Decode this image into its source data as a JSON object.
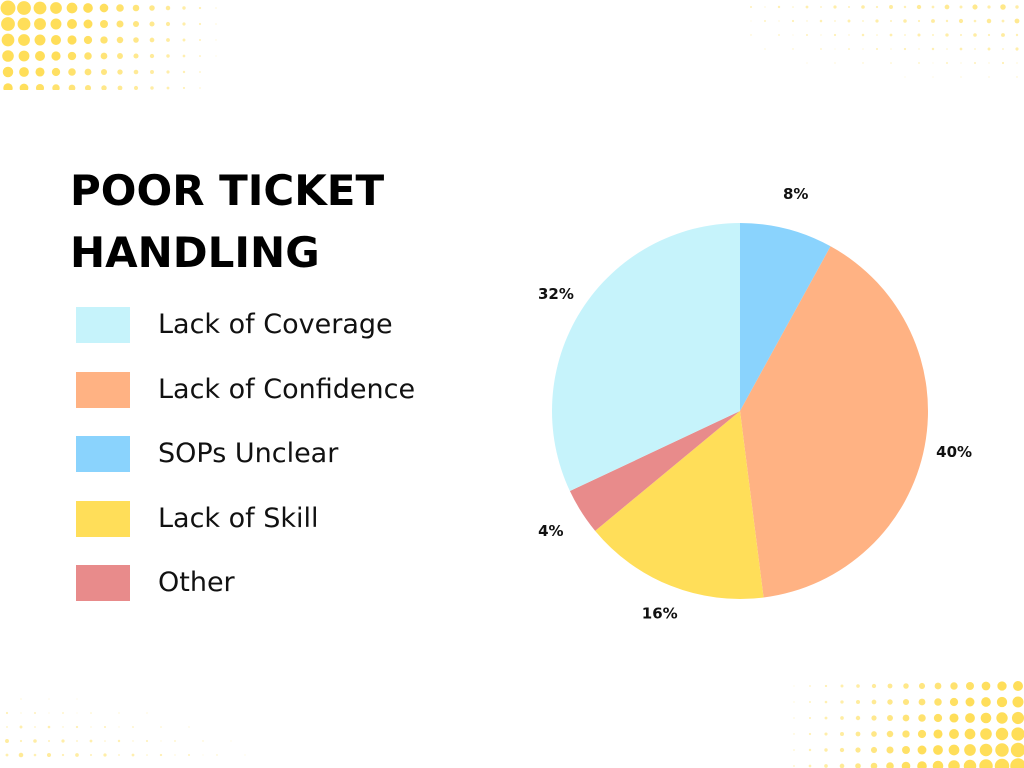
{
  "colors": {
    "coverage": "#c6f3fb",
    "confidence": "#ffb283",
    "sops": "#8ad3fd",
    "skill": "#ffde59",
    "other": "#e88b8b",
    "decoration": "#ffde59"
  },
  "chart_data": {
    "type": "pie",
    "title": "POOR TICKET HANDLING",
    "title_lines": [
      "POOR TICKET",
      "HANDLING"
    ],
    "slices": [
      {
        "name": "SOPs Unclear",
        "value": 8,
        "label": "8%",
        "color": "#8ad3fd"
      },
      {
        "name": "Lack of Confidence",
        "value": 40,
        "label": "40%",
        "color": "#ffb283"
      },
      {
        "name": "Lack of Skill",
        "value": 16,
        "label": "16%",
        "color": "#ffde59"
      },
      {
        "name": "Other",
        "value": 4,
        "label": "4%",
        "color": "#e88b8b"
      },
      {
        "name": "Lack of Coverage",
        "value": 32,
        "label": "32%",
        "color": "#c6f3fb"
      }
    ],
    "legend": [
      {
        "label": "Lack of Coverage",
        "color": "#c6f3fb"
      },
      {
        "label": "Lack of Confidence",
        "color": "#ffb283"
      },
      {
        "label": "SOPs Unclear",
        "color": "#8ad3fd"
      },
      {
        "label": "Lack of Skill",
        "color": "#ffde59"
      },
      {
        "label": "Other",
        "color": "#e88b8b"
      }
    ],
    "legend_placement": "left",
    "start_angle": "12 o'clock",
    "direction": "clockwise"
  }
}
